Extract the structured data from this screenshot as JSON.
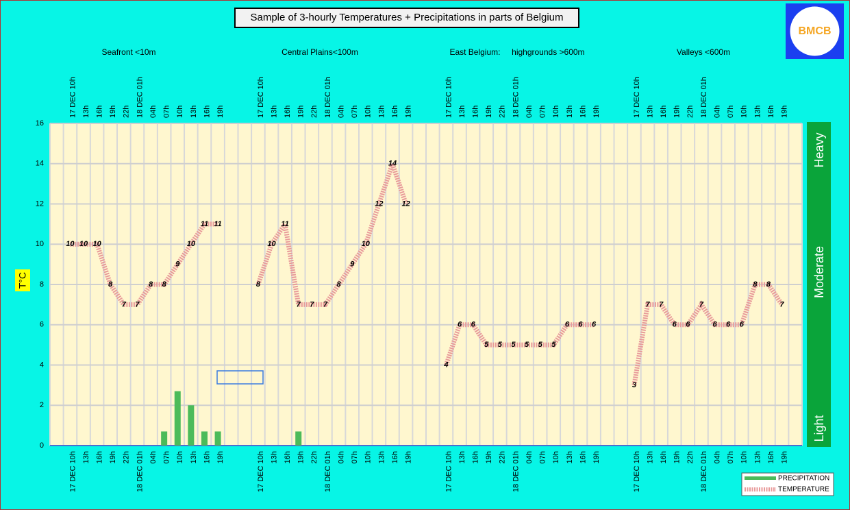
{
  "chart_data": {
    "type": "bar-line",
    "title": "Sample of 3-hourly Temperatures + Precipitations in parts of Belgium",
    "logo": "BMCB",
    "y_label": "T°C",
    "group_labels": [
      "Seafront <10m",
      "Central Plains<100m",
      "East Belgium:     highgrounds >600m",
      "Valleys <600m"
    ],
    "precip_levels": [
      "Light",
      "Moderate",
      "Heavy"
    ],
    "categories": [
      null,
      "17 DEC 10h",
      "13h",
      "16h",
      "19h",
      "22h",
      "18 DEC 01h",
      "04h",
      "07h",
      "10h",
      "13h",
      "16h",
      "19h",
      null,
      null,
      "17 DEC 10h",
      "13h",
      "16h",
      "19h",
      "22h",
      "18 DEC 01h",
      "04h",
      "07h",
      "10h",
      "13h",
      "16h",
      "19h",
      null,
      null,
      "17 DEC 10h",
      "13h",
      "16h",
      "19h",
      "22h",
      "18 DEC 01h",
      "04h",
      "07h",
      "10h",
      "13h",
      "16h",
      "19h",
      null,
      null,
      "17 DEC 10h",
      "13h",
      "16h",
      "19h",
      "22h",
      "18 DEC 01h",
      "04h",
      "07h",
      "10h",
      "13h",
      "16h",
      "19h",
      null
    ],
    "series": [
      {
        "name": "PRECIPITATION",
        "type": "bar",
        "color": "#4cbb5a",
        "values": [
          null,
          0,
          0,
          0,
          0,
          0,
          0,
          0,
          0.7,
          2.7,
          2,
          0.7,
          0.7,
          null,
          null,
          0,
          0,
          0,
          0.7,
          0,
          0,
          0,
          0,
          0,
          0,
          0,
          0,
          null,
          null,
          0,
          0,
          0,
          0,
          0,
          0,
          0,
          0,
          0,
          0,
          0,
          0,
          null,
          null,
          0,
          0,
          0,
          0,
          0,
          0,
          0,
          0,
          0,
          0,
          0,
          0,
          null
        ]
      },
      {
        "name": "TEMPERATURE",
        "type": "line",
        "color": "#e89a9a",
        "values": [
          null,
          10,
          10,
          10,
          8,
          7,
          7,
          8,
          8,
          9,
          10,
          11,
          11,
          null,
          null,
          8,
          10,
          11,
          7,
          7,
          7,
          8,
          9,
          10,
          12,
          14,
          12,
          null,
          null,
          4,
          6,
          6,
          5,
          5,
          5,
          5,
          5,
          5,
          6,
          6,
          6,
          null,
          null,
          3,
          7,
          7,
          6,
          6,
          7,
          6,
          6,
          6,
          8,
          8,
          7,
          null
        ]
      }
    ],
    "ylim": [
      0,
      16
    ],
    "yticks": [
      0,
      2,
      4,
      6,
      8,
      10,
      12,
      14,
      16
    ],
    "grid": true,
    "legend": "bottom-right"
  }
}
